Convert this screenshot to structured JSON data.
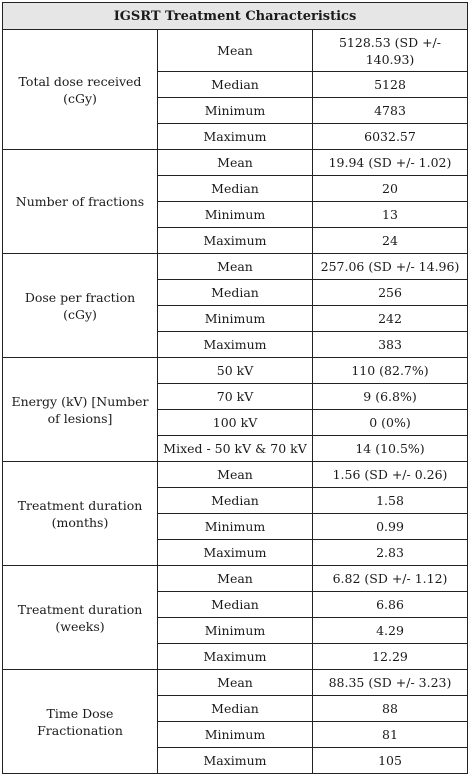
{
  "table": {
    "title": "IGSRT Treatment Characteristics",
    "groups": [
      {
        "label": "Total dose received (cGy)",
        "rows": [
          {
            "stat": "Mean",
            "value": "5128.53 (SD +/- 140.93)"
          },
          {
            "stat": "Median",
            "value": "5128"
          },
          {
            "stat": "Minimum",
            "value": "4783"
          },
          {
            "stat": "Maximum",
            "value": "6032.57"
          }
        ]
      },
      {
        "label": "Number of fractions",
        "rows": [
          {
            "stat": "Mean",
            "value": "19.94 (SD +/- 1.02)"
          },
          {
            "stat": "Median",
            "value": "20"
          },
          {
            "stat": "Minimum",
            "value": "13"
          },
          {
            "stat": "Maximum",
            "value": "24"
          }
        ]
      },
      {
        "label": "Dose per fraction (cGy)",
        "rows": [
          {
            "stat": "Mean",
            "value": "257.06 (SD +/- 14.96)"
          },
          {
            "stat": "Median",
            "value": "256"
          },
          {
            "stat": "Minimum",
            "value": "242"
          },
          {
            "stat": "Maximum",
            "value": "383"
          }
        ]
      },
      {
        "label": "Energy (kV) [Number of lesions]",
        "rows": [
          {
            "stat": "50 kV",
            "value": "110 (82.7%)"
          },
          {
            "stat": "70 kV",
            "value": "9 (6.8%)"
          },
          {
            "stat": "100 kV",
            "value": "0 (0%)"
          },
          {
            "stat": "Mixed - 50 kV & 70 kV",
            "value": "14 (10.5%)"
          }
        ]
      },
      {
        "label": "Treatment duration (months)",
        "rows": [
          {
            "stat": "Mean",
            "value": "1.56 (SD +/- 0.26)"
          },
          {
            "stat": "Median",
            "value": "1.58"
          },
          {
            "stat": "Minimum",
            "value": "0.99"
          },
          {
            "stat": "Maximum",
            "value": "2.83"
          }
        ]
      },
      {
        "label": "Treatment duration (weeks)",
        "rows": [
          {
            "stat": "Mean",
            "value": "6.82 (SD +/- 1.12)"
          },
          {
            "stat": "Median",
            "value": "6.86"
          },
          {
            "stat": "Minimum",
            "value": "4.29"
          },
          {
            "stat": "Maximum",
            "value": "12.29"
          }
        ]
      },
      {
        "label": "Time Dose Fractionation",
        "rows": [
          {
            "stat": "Mean",
            "value": "88.35 (SD +/- 3.23)"
          },
          {
            "stat": "Median",
            "value": "88"
          },
          {
            "stat": "Minimum",
            "value": "81"
          },
          {
            "stat": "Maximum",
            "value": "105"
          }
        ]
      }
    ]
  }
}
